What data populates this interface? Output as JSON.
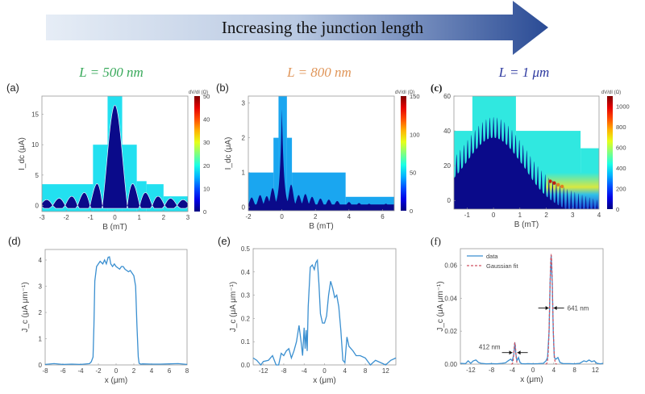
{
  "banner": {
    "text": "Increasing the junction length",
    "gradient_start": "#e6edf6",
    "gradient_end": "#2a4b95"
  },
  "length_labels": [
    {
      "text": "L = 500 nm",
      "color": "#3aaa5c"
    },
    {
      "text": "L = 800 nm",
      "color": "#e0965a"
    },
    {
      "text": "L = 1 μm",
      "color": "#2e3aa0"
    }
  ],
  "chart_data": [
    {
      "id": "a",
      "panel_label": "(a)",
      "type": "heatmap",
      "xlabel": "B (mT)",
      "ylabel": "I_dc (μA)",
      "xlim": [
        -3,
        3
      ],
      "ylim": [
        -1,
        18
      ],
      "xticks": [
        -3,
        -2,
        -1,
        0,
        1,
        2,
        3
      ],
      "yticks": [
        0,
        5,
        10,
        15
      ],
      "colorbar": {
        "label": "dV/dI (Ω)",
        "range": [
          0,
          50
        ],
        "ticks": [
          0,
          10,
          20,
          30,
          40,
          50
        ]
      },
      "background_color": "#22e0f0",
      "scan_window": [
        {
          "x": [
            -3,
            -0.9
          ],
          "ymax": 3.5
        },
        {
          "x": [
            -0.9,
            -0.3
          ],
          "ymax": 10
        },
        {
          "x": [
            -0.3,
            0.3
          ],
          "ymax": 18
        },
        {
          "x": [
            0.3,
            0.9
          ],
          "ymax": 10
        },
        {
          "x": [
            0.9,
            1.3
          ],
          "ymax": 4
        },
        {
          "x": [
            1.3,
            2
          ],
          "ymax": 3.5
        },
        {
          "x": [
            2,
            3
          ],
          "ymax": 1.5
        }
      ],
      "critical_current": {
        "central_peak": 16.5,
        "period_mT": 0.33,
        "lobe_heights": [
          3.4,
          1.9,
          1.3,
          1.0,
          0.8,
          0.6,
          0.5,
          0.4,
          0.35
        ]
      }
    },
    {
      "id": "b",
      "panel_label": "(b)",
      "type": "heatmap",
      "xlabel": "B (mT)",
      "ylabel": "I_dc (μA)",
      "xlim": [
        -2,
        6.7
      ],
      "ylim": [
        -0.1,
        3.2
      ],
      "xticks": [
        -2,
        0,
        2,
        4,
        6
      ],
      "yticks": [
        0,
        1,
        2,
        3
      ],
      "colorbar": {
        "label": "dV/dI (Ω)",
        "range": [
          0,
          150
        ],
        "ticks": [
          0,
          50,
          100,
          150
        ]
      },
      "background_color": "#1aa6f0",
      "scan_window": [
        {
          "x": [
            -2,
            -0.5
          ],
          "ymax": 1
        },
        {
          "x": [
            -0.5,
            -0.2
          ],
          "ymax": 2
        },
        {
          "x": [
            -0.2,
            0.3
          ],
          "ymax": 3.2
        },
        {
          "x": [
            0.3,
            0.6
          ],
          "ymax": 2
        },
        {
          "x": [
            0.6,
            3.8
          ],
          "ymax": 1
        },
        {
          "x": [
            3.8,
            6.7
          ],
          "ymax": 0.3
        }
      ],
      "critical_current": {
        "central_peak": 2.85,
        "side_peaks": [
          {
            "x": -1.8,
            "y": 0.28
          },
          {
            "x": -1.3,
            "y": 0.35
          },
          {
            "x": -0.9,
            "y": 0.32
          },
          {
            "x": -0.55,
            "y": 0.55
          },
          {
            "x": 0.55,
            "y": 0.65
          },
          {
            "x": 1.0,
            "y": 0.35
          },
          {
            "x": 1.4,
            "y": 0.38
          },
          {
            "x": 1.8,
            "y": 0.3
          },
          {
            "x": 2.3,
            "y": 0.25
          },
          {
            "x": 2.8,
            "y": 0.22
          },
          {
            "x": 3.3,
            "y": 0.18
          },
          {
            "x": 4.0,
            "y": 0.15
          },
          {
            "x": 4.6,
            "y": 0.12
          },
          {
            "x": 5.2,
            "y": 0.1
          },
          {
            "x": 6.2,
            "y": 0.1
          }
        ]
      }
    },
    {
      "id": "c",
      "panel_label": "(c)",
      "type": "heatmap",
      "xlabel": "B (mT)",
      "ylabel": "",
      "xlim": [
        -1.5,
        4
      ],
      "ylim": [
        -5,
        60
      ],
      "xticks": [
        -1,
        0,
        1,
        2,
        3,
        4
      ],
      "yticks": [
        0,
        20,
        40,
        60
      ],
      "colorbar": {
        "label": "dV/dI (Ω)",
        "range": [
          0,
          1100
        ],
        "ticks": [
          0,
          200,
          400,
          600,
          800,
          1000
        ]
      },
      "background_color": "#30e8e0",
      "scan_window": [
        {
          "x": [
            -1.5,
            -0.8
          ],
          "ymax": 40
        },
        {
          "x": [
            -0.8,
            0.85
          ],
          "ymax": 60
        },
        {
          "x": [
            0.85,
            3.3
          ],
          "ymax": 40
        },
        {
          "x": [
            3.3,
            4
          ],
          "ymax": 30
        }
      ],
      "critical_current": {
        "central_peak": 48,
        "period_mT": 0.14,
        "envelope_width_mT": 1.4,
        "baseline": 14
      }
    },
    {
      "id": "d",
      "panel_label": "(d)",
      "type": "line",
      "xlabel": "x (μm)",
      "ylabel": "J_c (μA μm⁻¹)",
      "xlim": [
        -8,
        8
      ],
      "ylim": [
        0,
        4.4
      ],
      "xticks": [
        -8,
        -6,
        -4,
        -2,
        0,
        2,
        4,
        6,
        8
      ],
      "yticks": [
        0,
        1,
        2,
        3,
        4
      ],
      "series": [
        {
          "name": "data",
          "color": "#3a8fd0",
          "x": [
            -8,
            -7,
            -6,
            -5,
            -4,
            -3,
            -2.8,
            -2.6,
            -2.5,
            -2.4,
            -2.2,
            -2.0,
            -1.8,
            -1.5,
            -1.3,
            -1.1,
            -0.9,
            -0.75,
            -0.6,
            -0.4,
            -0.2,
            0,
            0.2,
            0.4,
            0.6,
            0.8,
            1.0,
            1.2,
            1.4,
            1.6,
            1.8,
            2.0,
            2.2,
            2.35,
            2.5,
            2.6,
            2.8,
            3,
            4,
            5,
            6,
            7,
            8
          ],
          "y": [
            0.02,
            0.05,
            0.02,
            0.03,
            0.02,
            0.05,
            0.12,
            0.3,
            1.5,
            3.2,
            3.75,
            3.85,
            3.95,
            3.85,
            4.0,
            3.85,
            4.1,
            4.12,
            3.85,
            3.75,
            3.85,
            3.75,
            3.7,
            3.65,
            3.75,
            3.75,
            3.65,
            3.6,
            3.55,
            3.6,
            3.5,
            3.4,
            3.0,
            1.5,
            0.3,
            0.06,
            0.03,
            0.04,
            0.03,
            0.03,
            0.04,
            0.05,
            0.02
          ]
        }
      ]
    },
    {
      "id": "e",
      "panel_label": "(e)",
      "type": "line",
      "xlabel": "x (μm)",
      "ylabel": "J_c (μA μm⁻¹)",
      "xlim": [
        -14,
        14
      ],
      "ylim": [
        0,
        0.5
      ],
      "xticks": [
        -12,
        -8,
        -4,
        0,
        4,
        8,
        12
      ],
      "yticks": [
        0.0,
        0.1,
        0.2,
        0.3,
        0.4,
        0.5
      ],
      "series": [
        {
          "name": "data",
          "color": "#3a8fd0",
          "x": [
            -14,
            -13.3,
            -12.5,
            -12,
            -11,
            -10.2,
            -9.5,
            -9,
            -8.5,
            -8,
            -7.5,
            -7,
            -6.5,
            -6,
            -5.5,
            -5,
            -4.6,
            -4.3,
            -4.0,
            -3.8,
            -3.6,
            -3.4,
            -3.2,
            -2.8,
            -2.4,
            -2.0,
            -1.7,
            -1.4,
            -1.1,
            -0.8,
            -0.4,
            0,
            0.4,
            0.8,
            1.2,
            1.6,
            2.0,
            2.4,
            2.8,
            3.2,
            3.6,
            4.0,
            4.4,
            4.8,
            5.2,
            5.6,
            6.2,
            7,
            8,
            9,
            10,
            11,
            12,
            13,
            14
          ],
          "y": [
            0.03,
            0.02,
            0.0,
            0.015,
            0.02,
            0.04,
            0.0,
            0.0,
            0.05,
            0.04,
            0.06,
            0.07,
            0.03,
            0.06,
            0.1,
            0.17,
            0.1,
            0.04,
            0.16,
            0.07,
            0.15,
            0.06,
            0.25,
            0.42,
            0.43,
            0.41,
            0.44,
            0.45,
            0.35,
            0.22,
            0.18,
            0.18,
            0.21,
            0.3,
            0.36,
            0.33,
            0.29,
            0.3,
            0.25,
            0.15,
            0.02,
            0.01,
            0.12,
            0.08,
            0.07,
            0.06,
            0.04,
            0.04,
            0.03,
            0.0,
            0.02,
            0.01,
            0.0,
            0.02,
            0.03
          ]
        }
      ]
    },
    {
      "id": "f",
      "panel_label": "(f)",
      "type": "line",
      "xlabel": "x (μm)",
      "ylabel": "J_c (μA μm⁻¹)",
      "xlim": [
        -14,
        13.5
      ],
      "ylim": [
        0,
        0.07
      ],
      "xticks": [
        -12,
        -8,
        -4,
        0,
        4,
        8,
        12
      ],
      "yticks": [
        0.0,
        0.02,
        0.04,
        0.06
      ],
      "legend": {
        "position": "top-left",
        "entries": [
          "data",
          "Gaussian fit"
        ]
      },
      "series": [
        {
          "name": "data",
          "color": "#3a8fd0",
          "style": "solid",
          "x": [
            -14,
            -13,
            -12.5,
            -12,
            -11.5,
            -11,
            -10.5,
            -10,
            -9,
            -8,
            -7,
            -6,
            -5.3,
            -4.8,
            -4.3,
            -4.0,
            -3.7,
            -3.5,
            -3.3,
            -3.1,
            -2.8,
            -2.5,
            -2.2,
            -1.5,
            -1,
            0,
            1,
            2,
            2.5,
            2.8,
            3.1,
            3.3,
            3.5,
            3.7,
            3.9,
            4.1,
            4.4,
            4.8,
            5.2,
            5.8,
            7,
            8,
            9,
            9.8,
            10.3,
            10.8,
            11.3,
            11.8,
            12.3,
            13,
            13.5
          ],
          "y": [
            0.0005,
            0.0003,
            0.002,
            0.0005,
            0.002,
            0.0025,
            0.001,
            0.0005,
            0.0002,
            0.0003,
            0.0002,
            0.0005,
            0.0008,
            0.002,
            0.003,
            0.002,
            0.006,
            0.013,
            0.006,
            0.002,
            0.004,
            0.001,
            0.0003,
            0.0002,
            0.0003,
            0.0002,
            0.0003,
            0.0005,
            0.002,
            0.004,
            0.02,
            0.05,
            0.066,
            0.05,
            0.02,
            0.004,
            0.003,
            0.004,
            0.001,
            0.0003,
            0.0003,
            0.0002,
            0.0005,
            0.002,
            0.0015,
            0.0025,
            0.0015,
            0.002,
            0.0005,
            0.0002,
            0.0005
          ]
        },
        {
          "name": "Gaussian fit",
          "color": "#d05060",
          "style": "dashed",
          "peaks": [
            {
              "center": 3.5,
              "amplitude": 0.066,
              "fwhm_nm": 641
            },
            {
              "center": -3.5,
              "amplitude": 0.013,
              "fwhm_nm": 412
            }
          ]
        }
      ],
      "annotations": [
        {
          "text": "641 nm",
          "x": 3.5,
          "y": 0.034
        },
        {
          "text": "412 nm",
          "x": -3.5,
          "y": 0.007
        }
      ]
    }
  ]
}
